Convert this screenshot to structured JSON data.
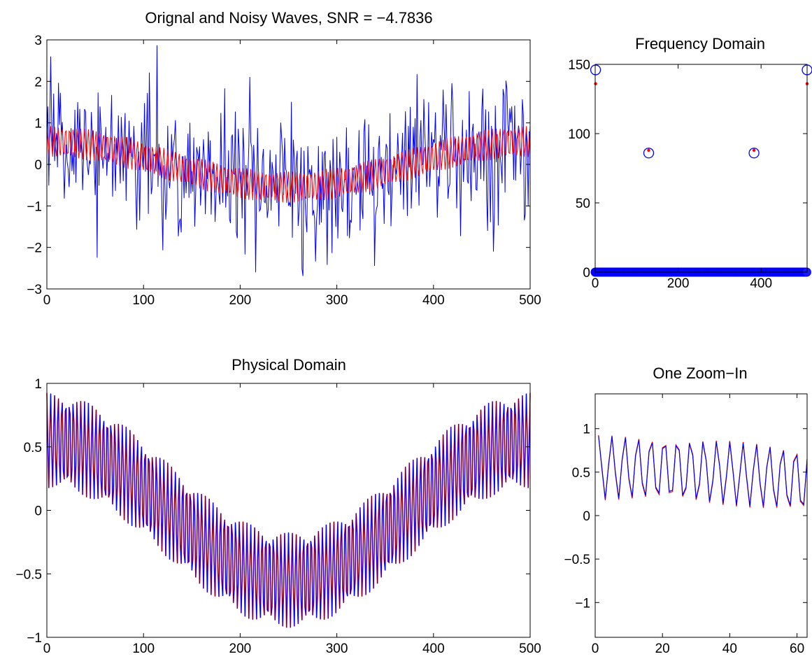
{
  "chart_data": [
    {
      "id": "noisy",
      "type": "line",
      "title": "Orignal and Noisy Waves, SNR = −4.7836",
      "xlim": [
        0,
        500
      ],
      "ylim": [
        -3,
        3
      ],
      "xticks": [
        0,
        100,
        200,
        300,
        400,
        500
      ],
      "yticks": [
        -3,
        -2,
        -1,
        0,
        1,
        2,
        3
      ],
      "xtick_labels": [
        "0",
        "100",
        "200",
        "300",
        "400",
        "500"
      ],
      "ytick_labels": [
        "−3",
        "−2",
        "−1",
        "0",
        "1",
        "2",
        "3"
      ],
      "grid": false,
      "series": [
        {
          "style": "noisy signal",
          "color": "#0000ff",
          "x_range": [
            0,
            500
          ],
          "model": "clean + noise (std ~0.9)",
          "noise_extremes": [
            [
              114,
              2.87
            ],
            [
              120,
              -2.07
            ],
            [
              205,
              -2.17
            ],
            [
              265,
              -2.69
            ],
            [
              290,
              -2.42
            ],
            [
              462,
              -2.1
            ]
          ]
        },
        {
          "style": "original signal",
          "color": "#ff0000",
          "x_range": [
            0,
            500
          ],
          "model": "0.55*cos(2*pi*x/500) + 0.375*cos(2*pi*128*x/500)"
        }
      ]
    },
    {
      "id": "freq",
      "type": "scatter",
      "title": "Frequency Domain",
      "xlim": [
        0,
        511
      ],
      "ylim": [
        0,
        150
      ],
      "xticks": [
        0,
        200,
        400
      ],
      "yticks": [
        0,
        50,
        100,
        150
      ],
      "xtick_labels": [
        "0",
        "200",
        "400"
      ],
      "ytick_labels": [
        "0",
        "50",
        "100",
        "150"
      ],
      "grid": false,
      "series": [
        {
          "marker": "open circle",
          "color": "#0000ff",
          "x": [
            1,
            129,
            383,
            511
          ],
          "y": [
            146,
            86,
            86,
            146
          ],
          "zero_bins": [
            0,
            511
          ]
        },
        {
          "marker": "dot",
          "color": "#ff0000",
          "x": [
            1,
            129,
            383,
            511
          ],
          "y": [
            136,
            88,
            88,
            136
          ]
        }
      ]
    },
    {
      "id": "physical",
      "type": "line",
      "title": "Physical Domain",
      "xlim": [
        0,
        500
      ],
      "ylim": [
        -1,
        1
      ],
      "xticks": [
        0,
        100,
        200,
        300,
        400,
        500
      ],
      "yticks": [
        -1,
        -0.5,
        0,
        0.5,
        1
      ],
      "xtick_labels": [
        "0",
        "100",
        "200",
        "300",
        "400",
        "500"
      ],
      "ytick_labels": [
        "−1",
        "−0.5",
        "0",
        "0.5",
        "1"
      ],
      "grid": false,
      "series": [
        {
          "style": "original signal",
          "color": "#ff0000",
          "x_range": [
            0,
            500
          ],
          "upper_envelope": [
            [
              0,
              0.93
            ],
            [
              250,
              -0.93
            ],
            [
              500,
              0.93
            ]
          ],
          "lower_envelope": [
            [
              0,
              0.2
            ],
            [
              250,
              -0.2
            ],
            [
              500,
              0.2
            ]
          ]
        },
        {
          "style": "reconstructed signal",
          "color": "#0000ff",
          "x_range": [
            0,
            500
          ],
          "upper_envelope": [
            [
              0,
              0.93
            ],
            [
              250,
              -0.93
            ],
            [
              500,
              0.93
            ]
          ],
          "lower_envelope": [
            [
              0,
              0.2
            ],
            [
              250,
              -0.2
            ],
            [
              500,
              0.2
            ]
          ]
        }
      ]
    },
    {
      "id": "zoom",
      "type": "line",
      "title": "One Zoom−In",
      "xlim": [
        0,
        63
      ],
      "ylim": [
        -1.4,
        1.4
      ],
      "xticks": [
        0,
        20,
        40,
        60
      ],
      "yticks": [
        -1,
        -0.5,
        0,
        0.5,
        1
      ],
      "xtick_labels": [
        "0",
        "20",
        "40",
        "60"
      ],
      "ytick_labels": [
        "−1",
        "−0.5",
        "0",
        "0.5",
        "1"
      ],
      "grid": false,
      "series": [
        {
          "style": "original signal",
          "color": "#ff0000",
          "x_range": [
            1,
            63
          ],
          "peaks": [
            [
              1,
              0.93
            ],
            [
              63,
              0.68
            ]
          ],
          "troughs": [
            [
              1,
              0.2
            ],
            [
              63,
              0.15
            ]
          ]
        },
        {
          "style": "reconstructed signal",
          "color": "#0000ff",
          "x_range": [
            1,
            63
          ],
          "peaks": [
            [
              1,
              0.93
            ],
            [
              63,
              0.68
            ]
          ],
          "troughs": [
            [
              1,
              0.2
            ],
            [
              63,
              0.16
            ]
          ]
        }
      ]
    }
  ]
}
